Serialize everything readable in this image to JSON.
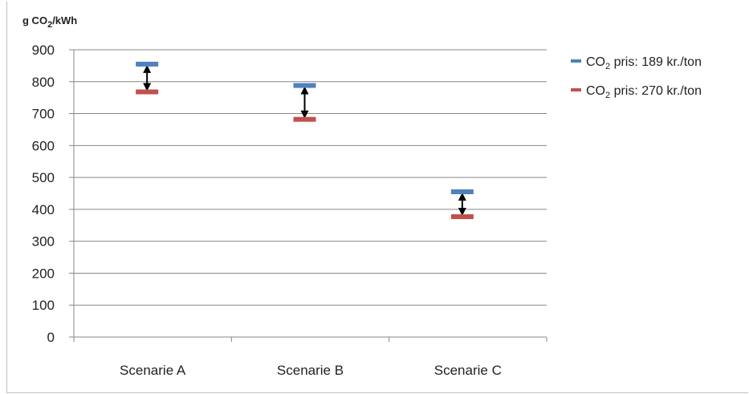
{
  "chart_data": {
    "type": "range-markers",
    "ylabel": {
      "prefix": "g CO",
      "sub": "2",
      "suffix": "/kWh"
    },
    "ylim": [
      0,
      900
    ],
    "yticks": [
      0,
      100,
      200,
      300,
      400,
      500,
      600,
      700,
      800,
      900
    ],
    "categories": [
      "Scenarie A",
      "Scenarie B",
      "Scenarie C"
    ],
    "series": [
      {
        "name": {
          "prefix": "CO",
          "sub": "2",
          "suffix": " pris: 189 kr./ton"
        },
        "color": "#4f81bd",
        "values": [
          855,
          788,
          455
        ]
      },
      {
        "name": {
          "prefix": "CO",
          "sub": "2",
          "suffix": " pris: 270 kr./ton"
        },
        "color": "#c0504d",
        "values": [
          768,
          682,
          377
        ]
      }
    ],
    "arrows": "double-headed arrow between series markers per category",
    "grid": true,
    "legend": "right"
  }
}
